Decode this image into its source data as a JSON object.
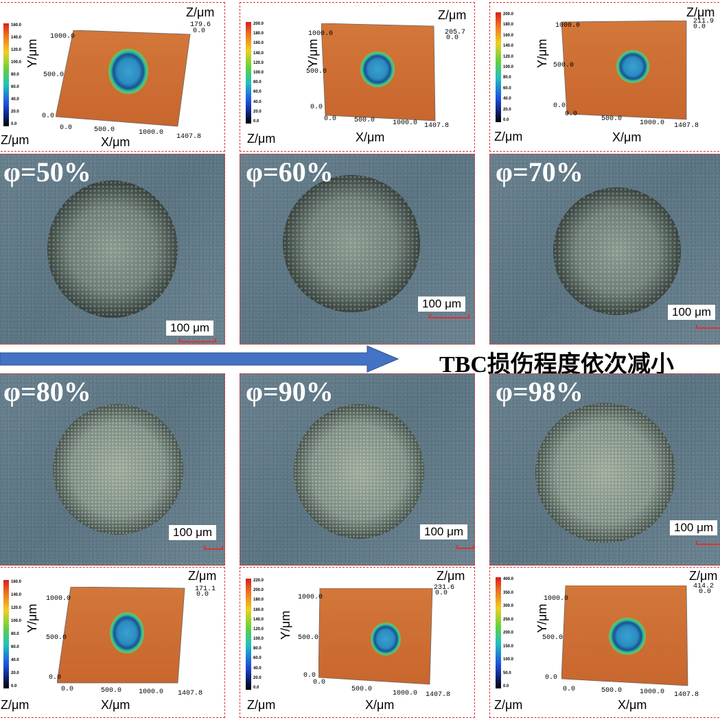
{
  "caption": "TBC损伤程度依次减小",
  "photos": [
    {
      "phi": "φ=50%",
      "scale": "100 μm"
    },
    {
      "phi": "φ=60%",
      "scale": "100 μm"
    },
    {
      "phi": "φ=70%",
      "scale": "100 μm"
    },
    {
      "phi": "φ=80%",
      "scale": "100 μm"
    },
    {
      "phi": "φ=90%",
      "scale": "100 μm"
    },
    {
      "phi": "φ=98%",
      "scale": "100 μm"
    }
  ],
  "profiles": [
    {
      "zmax": "179.6",
      "zmin": "0.0",
      "cbar": [
        "160.0",
        "140.0",
        "120.0",
        "100.0",
        "80.0",
        "60.0",
        "40.0",
        "20.0",
        "0.0"
      ],
      "ymax": "1000.0",
      "ymid": "500.0",
      "origin": "0.0",
      "xorigin": "0.0",
      "xmid": "500.0",
      "x1000": "1000.0",
      "xmax": "1407.8",
      "zlabel_top": "Z/μm",
      "zlabel_left": "Z/μm",
      "xlabel": "X/μm",
      "ylabel": "Y/μm"
    },
    {
      "zmax": "205.7",
      "zmin": "0.0",
      "cbar": [
        "200.0",
        "180.0",
        "160.0",
        "140.0",
        "120.0",
        "100.0",
        "80.0",
        "60.0",
        "40.0",
        "20.0",
        "0.0"
      ],
      "ymax": "1000.0",
      "ymid": "500.0",
      "origin": "0.0",
      "xorigin": "0.0",
      "xmid": "500.0",
      "x1000": "1000.0",
      "xmax": "1407.8",
      "zlabel_top": "Z/μm",
      "zlabel_left": "Z/μm",
      "xlabel": "X/μm",
      "ylabel": "Y/μm"
    },
    {
      "zmax": "211.9",
      "zmin": "0.0",
      "cbar": [
        "200.0",
        "180.0",
        "160.0",
        "140.0",
        "120.0",
        "100.0",
        "80.0",
        "60.0",
        "40.0",
        "20.0",
        "0.0"
      ],
      "ymax": "1000.0",
      "ymid": "500.0",
      "origin": "0.0",
      "xorigin": "0.0",
      "xmid": "500.0",
      "x1000": "1000.0",
      "xmax": "1407.8",
      "zlabel_top": "Z/μm",
      "zlabel_left": "Z/μm",
      "xlabel": "X/μm",
      "ylabel": "Y/μm"
    },
    {
      "zmax": "171.1",
      "zmin": "0.0",
      "cbar": [
        "160.0",
        "140.0",
        "120.0",
        "100.0",
        "80.0",
        "60.0",
        "40.0",
        "20.0",
        "0.0"
      ],
      "ymax": "1000.0",
      "ymid": "500.0",
      "origin": "0.0",
      "xorigin": "0.0",
      "xmid": "500.0",
      "x1000": "1000.0",
      "xmax": "1407.8",
      "zlabel_top": "Z/μm",
      "zlabel_left": "Z/μm",
      "xlabel": "X/μm",
      "ylabel": "Y/μm"
    },
    {
      "zmax": "231.6",
      "zmin": "0.0",
      "cbar": [
        "220.0",
        "200.0",
        "180.0",
        "160.0",
        "140.0",
        "120.0",
        "100.0",
        "80.0",
        "60.0",
        "40.0",
        "20.0",
        "0.0"
      ],
      "ymax": "1000.0",
      "ymid": "500.0",
      "origin": "0.0",
      "xorigin": "0.0",
      "xmid": "500.0",
      "x1000": "1000.0",
      "xmax": "1407.8",
      "zlabel_top": "Z/μm",
      "zlabel_left": "Z/μm",
      "xlabel": "X/μm",
      "ylabel": "Y/μm"
    },
    {
      "zmax": "414.2",
      "zmin": "0.0",
      "cbar": [
        "400.0",
        "350.0",
        "300.0",
        "250.0",
        "200.0",
        "150.0",
        "100.0",
        "50.0",
        "0.0"
      ],
      "ymax": "1000.0",
      "ymid": "500.0",
      "origin": "0.0",
      "xorigin": "0.0",
      "xmid": "500.0",
      "x1000": "1000.0",
      "xmax": "1407.8",
      "zlabel_top": "Z/μm",
      "zlabel_left": "Z/μm",
      "xlabel": "X/μm",
      "ylabel": "Y/μm"
    }
  ],
  "colors": {
    "frame": "#e03030",
    "arrow": "#4472c4",
    "surface": "#d67a3c"
  }
}
